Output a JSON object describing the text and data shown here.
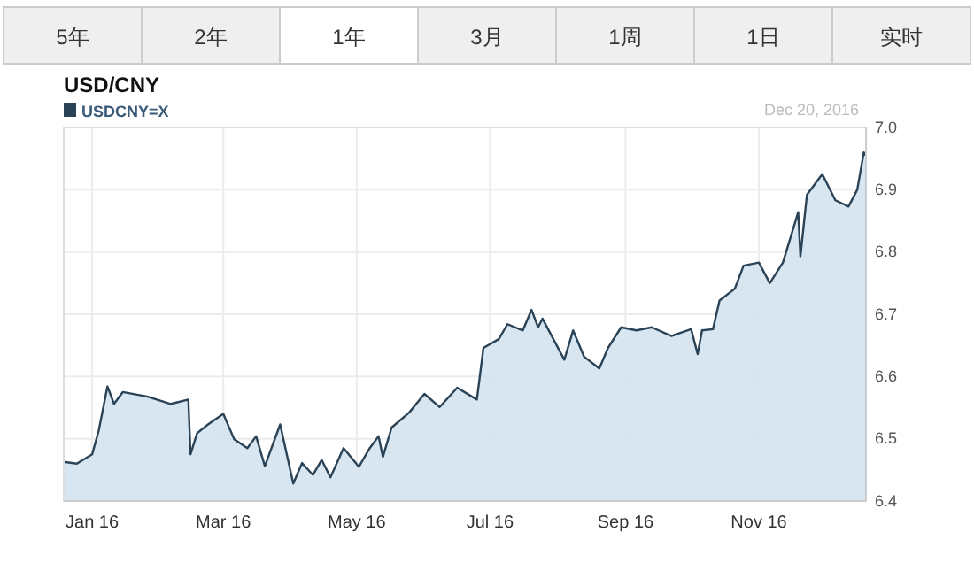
{
  "chart_data": {
    "type": "area",
    "title": "USD/CNY",
    "legend": "top left",
    "grid": true,
    "annotations": [
      "5年",
      "2年",
      "1年",
      "3月",
      "1周",
      "1日",
      "实时",
      "Dec 20, 2016"
    ],
    "xlim": [
      "2015-12-19",
      "2016-12-20"
    ],
    "xticks": [
      {
        "value": "2016-01-01",
        "label": "Jan 16"
      },
      {
        "value": "2016-03-01",
        "label": "Mar 16"
      },
      {
        "value": "2016-05-01",
        "label": "May 16"
      },
      {
        "value": "2016-07-01",
        "label": "Jul 16"
      },
      {
        "value": "2016-09-01",
        "label": "Sep 16"
      },
      {
        "value": "2016-11-01",
        "label": "Nov 16"
      }
    ],
    "ylim": [
      6.4,
      7.0
    ],
    "yticks": [
      {
        "value": 6.4,
        "label": "6.4"
      },
      {
        "value": 6.5,
        "label": "6.5"
      },
      {
        "value": 6.6,
        "label": "6.6"
      },
      {
        "value": 6.7,
        "label": "6.7"
      },
      {
        "value": 6.8,
        "label": "6.8"
      },
      {
        "value": 6.9,
        "label": "6.9"
      },
      {
        "value": 7.0,
        "label": "7.0"
      }
    ],
    "series": [
      {
        "name": "USDCNY=X",
        "color": "#2b4357",
        "x": [
          "2015-12-19",
          "2015-12-25",
          "2016-01-01",
          "2016-01-04",
          "2016-01-08",
          "2016-01-11",
          "2016-01-15",
          "2016-01-26",
          "2016-02-06",
          "2016-02-14",
          "2016-02-15",
          "2016-02-18",
          "2016-02-23",
          "2016-03-01",
          "2016-03-06",
          "2016-03-12",
          "2016-03-16",
          "2016-03-20",
          "2016-03-27",
          "2016-04-02",
          "2016-04-06",
          "2016-04-11",
          "2016-04-15",
          "2016-04-19",
          "2016-04-25",
          "2016-05-02",
          "2016-05-07",
          "2016-05-11",
          "2016-05-13",
          "2016-05-17",
          "2016-05-25",
          "2016-06-01",
          "2016-06-08",
          "2016-06-16",
          "2016-06-25",
          "2016-06-28",
          "2016-07-05",
          "2016-07-09",
          "2016-07-16",
          "2016-07-20",
          "2016-07-23",
          "2016-07-25",
          "2016-08-04",
          "2016-08-08",
          "2016-08-13",
          "2016-08-20",
          "2016-08-24",
          "2016-08-30",
          "2016-09-06",
          "2016-09-13",
          "2016-09-22",
          "2016-10-01",
          "2016-10-04",
          "2016-10-06",
          "2016-10-11",
          "2016-10-14",
          "2016-10-21",
          "2016-10-25",
          "2016-11-01",
          "2016-11-06",
          "2016-11-12",
          "2016-11-19",
          "2016-11-20",
          "2016-11-23",
          "2016-11-30",
          "2016-12-06",
          "2016-12-12",
          "2016-12-16",
          "2016-12-19",
          "2016-12-20"
        ],
        "values": [
          6.463,
          6.46,
          6.475,
          6.513,
          6.584,
          6.556,
          6.575,
          6.568,
          6.556,
          6.563,
          6.475,
          6.509,
          6.523,
          6.54,
          6.499,
          6.485,
          6.504,
          6.456,
          6.523,
          6.428,
          6.461,
          6.442,
          6.466,
          6.438,
          6.485,
          6.455,
          6.485,
          6.504,
          6.471,
          6.518,
          6.542,
          6.572,
          6.551,
          6.582,
          6.563,
          6.646,
          6.66,
          6.684,
          6.674,
          6.707,
          6.679,
          6.693,
          6.627,
          6.674,
          6.632,
          6.613,
          6.646,
          6.679,
          6.674,
          6.679,
          6.665,
          6.676,
          6.636,
          6.674,
          6.676,
          6.722,
          6.741,
          6.778,
          6.783,
          6.75,
          6.783,
          6.864,
          6.793,
          6.892,
          6.925,
          6.883,
          6.873,
          6.9,
          6.96,
          6.955
        ]
      }
    ]
  }
}
